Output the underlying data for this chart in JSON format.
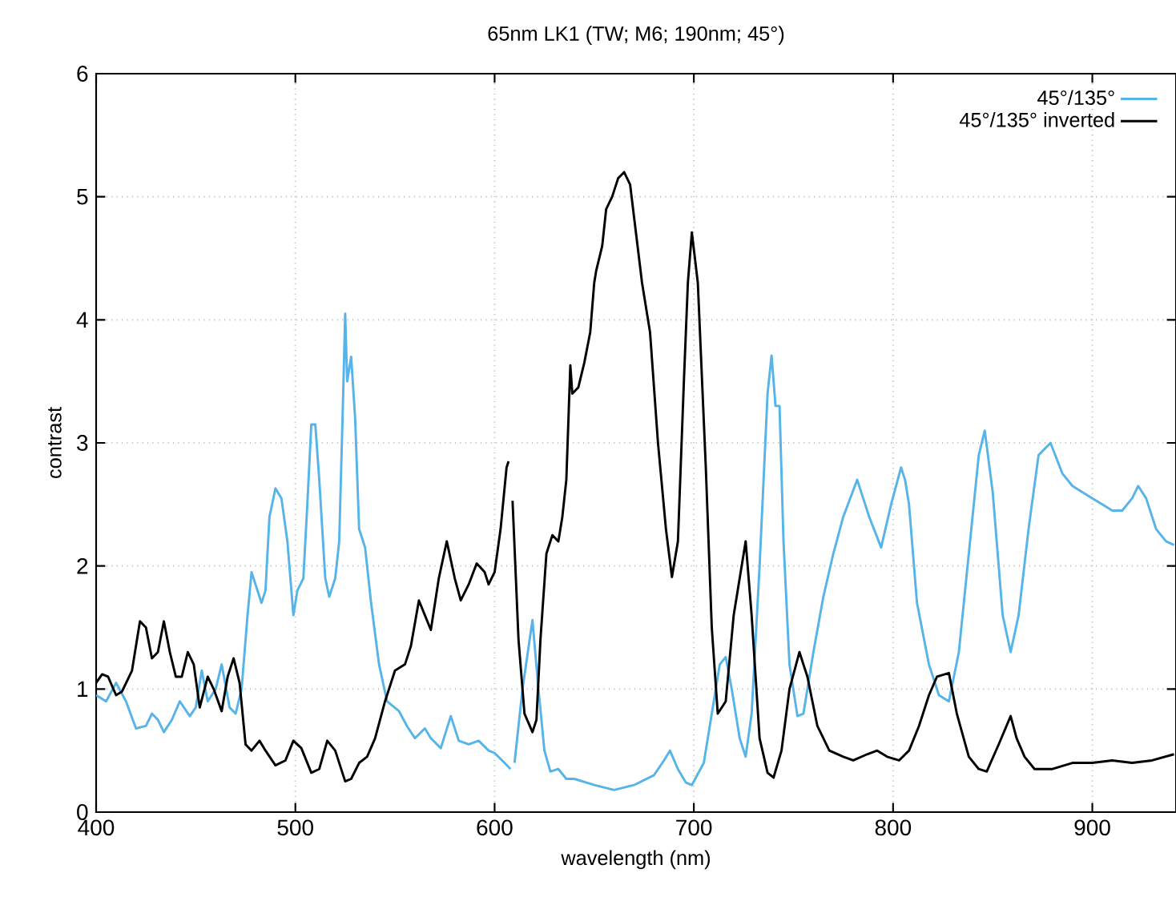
{
  "chart_data": {
    "type": "line",
    "title": "65nm LK1 (TW; M6; 190nm; 45°)",
    "xlabel": "wavelength (nm)",
    "ylabel": "contrast",
    "xlim": [
      400,
      942
    ],
    "ylim": [
      0,
      6
    ],
    "xticks": [
      400,
      500,
      600,
      700,
      800,
      900
    ],
    "yticks": [
      0,
      1,
      2,
      3,
      4,
      5,
      6
    ],
    "grid": true,
    "legend": "top right",
    "marker": "none",
    "line_style": "solid",
    "series": [
      {
        "name": "45°/135°",
        "color": "#56b4e9",
        "x": [
          400,
          405,
          410,
          415,
          420,
          425,
          428,
          431,
          434,
          438,
          442,
          447,
          450,
          453,
          456,
          460,
          463,
          467,
          470,
          473,
          476,
          478,
          480,
          483,
          485,
          487,
          490,
          493,
          496,
          499,
          501,
          504,
          506,
          508,
          510,
          512,
          515,
          517,
          520,
          522,
          524,
          525,
          526,
          528,
          530,
          532,
          535,
          538,
          542,
          546,
          552,
          556,
          560,
          565,
          568,
          573,
          578,
          582,
          587,
          592,
          597,
          600,
          605,
          608,
          609,
          610,
          614,
          619,
          622,
          625,
          628,
          632,
          636,
          640,
          650,
          660,
          670,
          680,
          685,
          688,
          692,
          696,
          699,
          705,
          710,
          713,
          716,
          719,
          723,
          726,
          729,
          733,
          737,
          739,
          741,
          743,
          745,
          748,
          752,
          755,
          760,
          765,
          770,
          775,
          782,
          788,
          794,
          799,
          804,
          806,
          808,
          812,
          818,
          823,
          828,
          833,
          838,
          843,
          846,
          850,
          855,
          859,
          863,
          868,
          873,
          879,
          885,
          890,
          895,
          900,
          905,
          910,
          915,
          920,
          923,
          927,
          932,
          937,
          941
        ],
        "values": [
          0.95,
          0.9,
          1.05,
          0.9,
          0.68,
          0.7,
          0.8,
          0.75,
          0.65,
          0.75,
          0.9,
          0.78,
          0.85,
          1.15,
          0.9,
          1.0,
          1.2,
          0.85,
          0.8,
          1.0,
          1.6,
          1.95,
          1.85,
          1.7,
          1.8,
          2.4,
          2.63,
          2.55,
          2.2,
          1.6,
          1.8,
          1.9,
          2.5,
          3.15,
          3.15,
          2.7,
          1.9,
          1.75,
          1.9,
          2.2,
          3.4,
          4.05,
          3.5,
          3.7,
          3.2,
          2.3,
          2.15,
          1.7,
          1.2,
          0.9,
          0.82,
          0.7,
          0.6,
          0.68,
          0.6,
          0.52,
          0.78,
          0.58,
          0.55,
          0.58,
          0.5,
          0.48,
          0.4,
          0.35,
          null,
          0.4,
          1.0,
          1.56,
          1.0,
          0.5,
          0.33,
          0.35,
          0.27,
          0.27,
          0.22,
          0.18,
          0.22,
          0.3,
          0.42,
          0.5,
          0.35,
          0.24,
          0.22,
          0.4,
          0.9,
          1.2,
          1.26,
          1.0,
          0.6,
          0.45,
          0.8,
          2.0,
          3.4,
          3.71,
          3.3,
          3.3,
          2.2,
          1.2,
          0.78,
          0.8,
          1.3,
          1.75,
          2.1,
          2.4,
          2.7,
          2.4,
          2.15,
          2.5,
          2.8,
          2.7,
          2.5,
          1.7,
          1.2,
          0.95,
          0.9,
          1.3,
          2.1,
          2.9,
          3.1,
          2.6,
          1.6,
          1.3,
          1.6,
          2.3,
          2.9,
          3.0,
          2.75,
          2.65,
          2.6,
          2.55,
          2.5,
          2.45,
          2.45,
          2.55,
          2.65,
          2.55,
          2.3,
          2.2,
          2.17
        ]
      },
      {
        "name": "45°/135° inverted",
        "color": "#000000",
        "x": [
          400,
          403,
          406,
          410,
          413,
          418,
          422,
          425,
          428,
          431,
          434,
          437,
          440,
          443,
          446,
          449,
          452,
          456,
          459,
          463,
          466,
          469,
          472,
          475,
          478,
          482,
          485,
          490,
          495,
          499,
          503,
          508,
          512,
          516,
          520,
          525,
          528,
          532,
          536,
          540,
          545,
          550,
          555,
          558,
          562,
          565,
          568,
          572,
          576,
          580,
          583,
          587,
          591,
          595,
          597,
          600,
          603,
          606,
          607,
          608,
          609,
          612,
          615,
          619,
          621,
          623,
          626,
          629,
          632,
          634,
          636,
          638,
          639,
          642,
          645,
          648,
          650,
          651,
          654,
          656,
          659,
          662,
          665,
          668,
          671,
          674,
          678,
          682,
          686,
          689,
          692,
          695,
          697,
          699,
          702,
          706,
          709,
          712,
          716,
          720,
          726,
          729,
          733,
          737,
          740,
          744,
          748,
          753,
          757,
          762,
          768,
          775,
          780,
          787,
          792,
          797,
          803,
          808,
          813,
          818,
          822,
          828,
          832,
          838,
          843,
          847,
          853,
          859,
          862,
          866,
          871,
          880,
          890,
          900,
          910,
          920,
          930,
          941
        ],
        "values": [
          1.05,
          1.12,
          1.1,
          0.95,
          0.98,
          1.15,
          1.55,
          1.5,
          1.25,
          1.3,
          1.55,
          1.3,
          1.1,
          1.1,
          1.3,
          1.2,
          0.85,
          1.1,
          1.0,
          0.82,
          1.1,
          1.25,
          1.05,
          0.55,
          0.5,
          0.58,
          0.5,
          0.38,
          0.42,
          0.58,
          0.52,
          0.32,
          0.35,
          0.58,
          0.5,
          0.25,
          0.27,
          0.4,
          0.45,
          0.6,
          0.9,
          1.15,
          1.2,
          1.35,
          1.72,
          1.6,
          1.48,
          1.9,
          2.2,
          1.9,
          1.72,
          1.85,
          2.02,
          1.95,
          1.85,
          1.95,
          2.3,
          2.8,
          2.85,
          null,
          2.53,
          1.4,
          0.8,
          0.65,
          0.75,
          1.4,
          2.1,
          2.25,
          2.2,
          2.4,
          2.7,
          3.63,
          3.4,
          3.45,
          3.65,
          3.9,
          4.3,
          4.4,
          4.6,
          4.9,
          5.0,
          5.15,
          5.2,
          5.1,
          4.7,
          4.3,
          3.9,
          3.0,
          2.3,
          1.91,
          2.2,
          3.5,
          4.3,
          4.71,
          4.3,
          2.8,
          1.5,
          0.8,
          0.9,
          1.6,
          2.2,
          1.6,
          0.6,
          0.32,
          0.28,
          0.5,
          1.0,
          1.3,
          1.1,
          0.7,
          0.5,
          0.45,
          0.42,
          0.47,
          0.5,
          0.45,
          0.42,
          0.5,
          0.7,
          0.95,
          1.1,
          1.13,
          0.8,
          0.45,
          0.35,
          0.33,
          0.55,
          0.78,
          0.6,
          0.45,
          0.35,
          0.35,
          0.4,
          0.4,
          0.42,
          0.4,
          0.42,
          0.47
        ]
      }
    ]
  }
}
